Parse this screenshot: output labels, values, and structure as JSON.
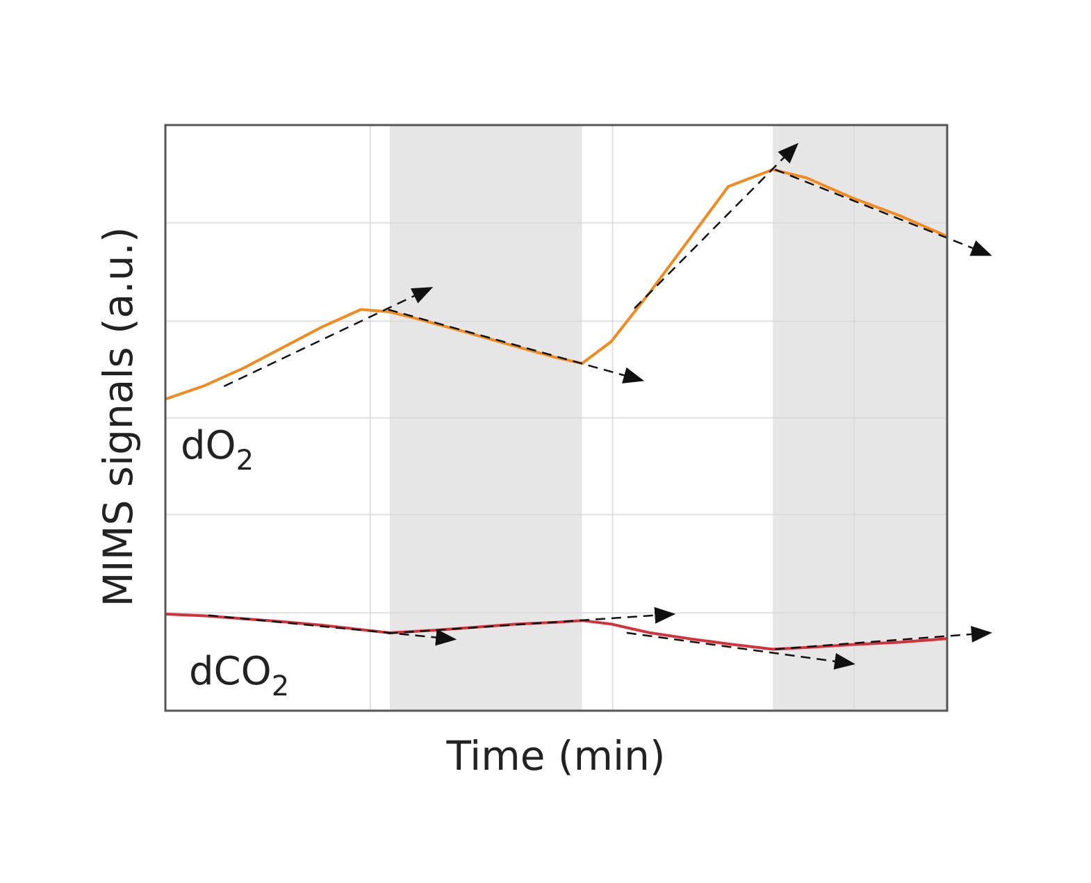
{
  "chart_data": {
    "type": "line",
    "title": "",
    "xlabel": "Time (min)",
    "ylabel": "MIMS signals (a.u.)",
    "x_tick_labels": [],
    "y_tick_labels": [],
    "grid": true,
    "xlim": [
      0,
      100
    ],
    "ylim": [
      0,
      100
    ],
    "shaded_regions": [
      {
        "x_start": 28.7,
        "x_end": 53.3
      },
      {
        "x_start": 77.7,
        "x_end": 100
      }
    ],
    "series": [
      {
        "name": "dO",
        "name_subscript": "2",
        "color": "#f28a1e",
        "x": [
          0,
          5,
          10,
          15,
          20,
          25,
          28.7,
          32,
          38,
          44,
          50,
          53.3,
          57,
          62,
          67,
          72,
          77.7,
          82,
          88,
          94,
          100
        ],
        "y": [
          53.2,
          55.5,
          58.5,
          62.0,
          65.5,
          68.5,
          68.1,
          67.0,
          64.8,
          62.5,
          60.3,
          59.3,
          63.0,
          71.5,
          80.5,
          89.5,
          92.4,
          91.0,
          87.5,
          84.5,
          81.0
        ]
      },
      {
        "name": "dCO",
        "name_subscript": "2",
        "color": "#d7303a",
        "x": [
          0,
          5,
          10,
          15,
          20,
          28.7,
          35,
          40,
          45,
          50,
          53.3,
          57,
          62,
          67,
          72,
          77.7,
          82,
          88,
          94,
          100
        ],
        "y": [
          16.5,
          16.2,
          15.7,
          15.2,
          14.6,
          13.3,
          13.8,
          14.3,
          14.8,
          15.1,
          15.4,
          14.8,
          13.3,
          12.3,
          11.4,
          10.5,
          10.8,
          11.3,
          11.7,
          12.3
        ]
      }
    ],
    "trend_arrows": [
      {
        "x1": 7.5,
        "y1": 55.4,
        "x2": 34.0,
        "y2": 72.2
      },
      {
        "x1": 28.5,
        "y1": 68.5,
        "x2": 61.0,
        "y2": 56.4
      },
      {
        "x1": 60.0,
        "y1": 68.7,
        "x2": 80.8,
        "y2": 96.7
      },
      {
        "x1": 78.0,
        "y1": 92.4,
        "x2": 105.5,
        "y2": 77.8
      },
      {
        "x1": 5.5,
        "y1": 16.3,
        "x2": 37.0,
        "y2": 12.2
      },
      {
        "x1": 28.5,
        "y1": 13.2,
        "x2": 65.0,
        "y2": 16.5
      },
      {
        "x1": 59.0,
        "y1": 13.3,
        "x2": 88.0,
        "y2": 8.0
      },
      {
        "x1": 78.0,
        "y1": 10.5,
        "x2": 105.5,
        "y2": 13.3
      }
    ]
  }
}
